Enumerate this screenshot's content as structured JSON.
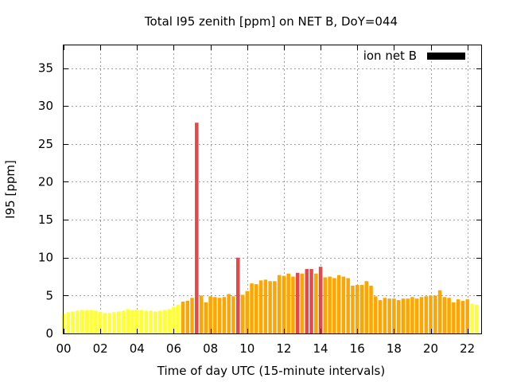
{
  "chart_data": {
    "type": "bar",
    "title": "Total I95 zenith [ppm] on NET B, DoY=044",
    "xlabel": "Time of day UTC (15-minute intervals)",
    "ylabel": "I95 [ppm]",
    "xlim": [
      0,
      22.75
    ],
    "ylim": [
      0,
      38
    ],
    "grid": true,
    "legend": {
      "position": "top-right",
      "label": "ion net B",
      "color": "#000000"
    },
    "x_tick_labels": [
      "00",
      "02",
      "04",
      "06",
      "08",
      "10",
      "12",
      "14",
      "16",
      "18",
      "20",
      "22"
    ],
    "y_tick_labels": [
      "0",
      "5",
      "10",
      "15",
      "20",
      "25",
      "30",
      "35"
    ],
    "colors": {
      "low": "#ffff33",
      "medium": "#ffa500",
      "high": "#e8474a"
    },
    "thresholds": {
      "medium_from": 4,
      "high_from": 8
    },
    "bar_interval_hours": 0.25,
    "values": [
      2.6,
      2.8,
      2.9,
      3.0,
      3.1,
      3.1,
      3.1,
      3.0,
      2.8,
      2.7,
      2.7,
      2.8,
      2.9,
      3.0,
      3.2,
      3.1,
      3.1,
      3.1,
      3.0,
      3.0,
      2.9,
      3.0,
      3.1,
      3.2,
      3.5,
      3.8,
      4.2,
      4.3,
      4.7,
      27.8,
      5.0,
      4.1,
      4.9,
      4.8,
      4.7,
      4.8,
      5.2,
      4.9,
      10.0,
      5.1,
      5.6,
      6.6,
      6.5,
      7.0,
      7.1,
      6.9,
      6.9,
      7.7,
      7.6,
      7.9,
      7.5,
      8.0,
      7.9,
      8.5,
      8.5,
      7.9,
      8.8,
      7.4,
      7.5,
      7.3,
      7.7,
      7.5,
      7.3,
      6.3,
      6.4,
      6.4,
      6.9,
      6.3,
      4.9,
      4.4,
      4.7,
      4.6,
      4.6,
      4.4,
      4.6,
      4.6,
      4.8,
      4.6,
      4.8,
      4.9,
      5.0,
      5.0,
      5.7,
      4.8,
      4.7,
      4.1,
      4.5,
      4.3,
      4.5,
      3.9,
      3.8
    ]
  }
}
